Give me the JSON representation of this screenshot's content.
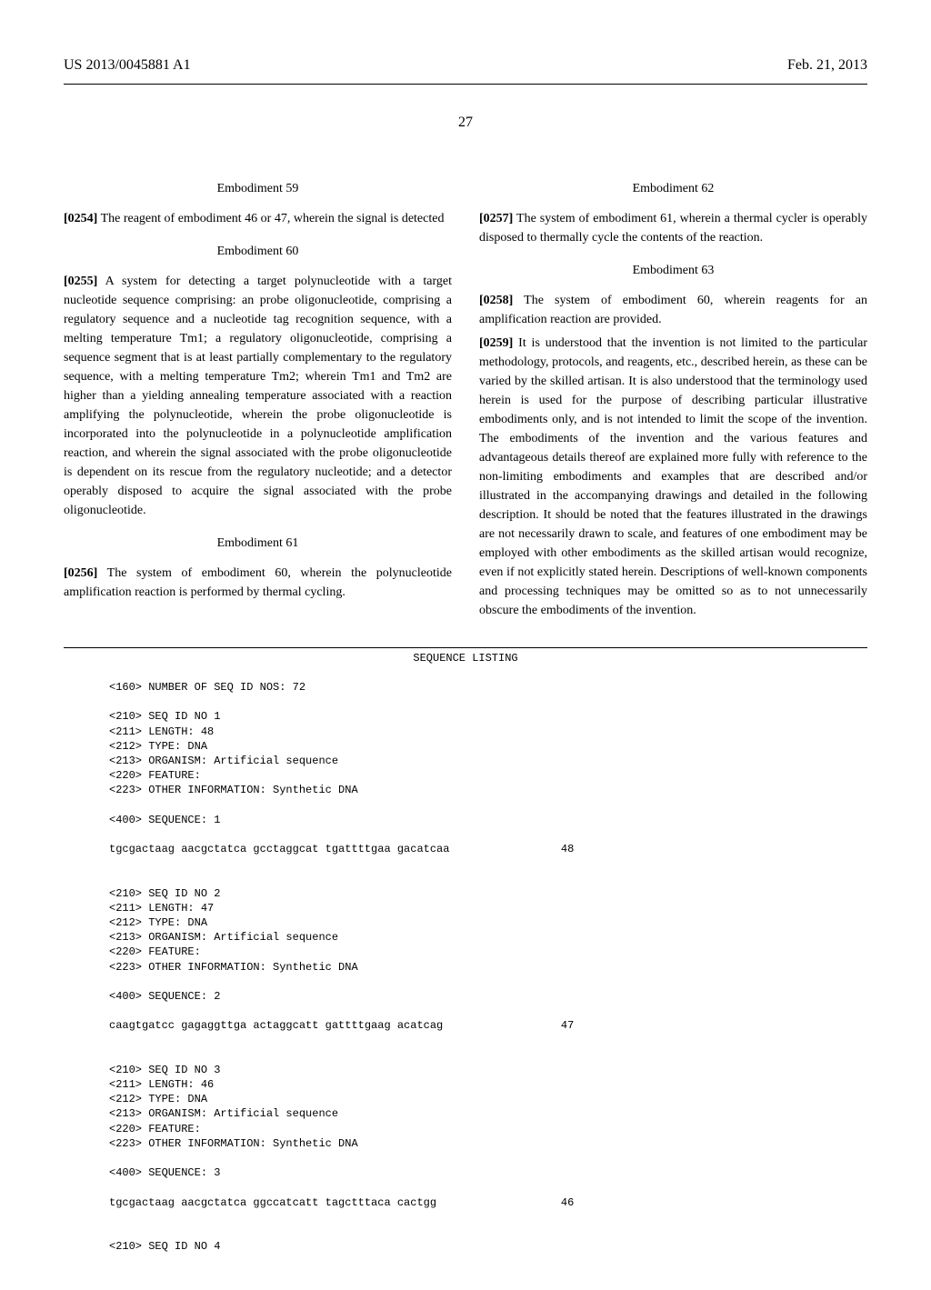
{
  "header": {
    "left": "US 2013/0045881 A1",
    "right": "Feb. 21, 2013"
  },
  "pageNumber": "27",
  "leftColumn": {
    "embodiments": [
      {
        "title": "Embodiment 59",
        "paraNum": "[0254]",
        "text": "  The reagent of embodiment 46 or 47, wherein the signal is detected"
      },
      {
        "title": "Embodiment 60",
        "paraNum": "[0255]",
        "text": "  A system for detecting a target polynucleotide with a target nucleotide sequence comprising: an probe oligonucleotide, comprising a regulatory sequence and a nucleotide tag recognition sequence, with a melting temperature Tm1; a regulatory oligonucleotide, comprising a sequence segment that is at least partially complementary to the regulatory sequence, with a melting temperature Tm2; wherein Tm1 and Tm2 are higher than a yielding annealing temperature associated with a reaction amplifying the polynucleotide, wherein the probe oligonucleotide is incorporated into the polynucleotide in a polynucleotide amplification reaction, and wherein the signal associated with the probe oligonucleotide is dependent on its rescue from the regulatory nucleotide; and a detector operably disposed to acquire the signal associated with the probe oligonucleotide."
      },
      {
        "title": "Embodiment 61",
        "paraNum": "[0256]",
        "text": "  The system of embodiment 60, wherein the polynucleotide amplification reaction is performed by thermal cycling."
      }
    ]
  },
  "rightColumn": {
    "embodiments": [
      {
        "title": "Embodiment 62",
        "paraNum": "[0257]",
        "text": "  The system of embodiment 61, wherein a thermal cycler is operably disposed to thermally cycle the contents of the reaction."
      },
      {
        "title": "Embodiment 63",
        "paraNum": "[0258]",
        "text": "  The system of embodiment 60, wherein reagents for an amplification reaction are provided."
      }
    ],
    "extraParagraph": {
      "paraNum": "[0259]",
      "text": "  It is understood that the invention is not limited to the particular methodology, protocols, and reagents, etc., described herein, as these can be varied by the skilled artisan. It is also understood that the terminology used herein is used for the purpose of describing particular illustrative embodiments only, and is not intended to limit the scope of the invention. The embodiments of the invention and the various features and advantageous details thereof are explained more fully with reference to the non-limiting embodiments and examples that are described and/or illustrated in the accompanying drawings and detailed in the following description. It should be noted that the features illustrated in the drawings are not necessarily drawn to scale, and features of one embodiment may be employed with other embodiments as the skilled artisan would recognize, even if not explicitly stated herein. Descriptions of well-known components and processing techniques may be omitted so as to not unnecessarily obscure the embodiments of the invention."
    }
  },
  "sequenceListing": {
    "title": "SEQUENCE LISTING",
    "content": "<160> NUMBER OF SEQ ID NOS: 72\n\n<210> SEQ ID NO 1\n<211> LENGTH: 48\n<212> TYPE: DNA\n<213> ORGANISM: Artificial sequence\n<220> FEATURE:\n<223> OTHER INFORMATION: Synthetic DNA\n\n<400> SEQUENCE: 1\n\ntgcgactaag aacgctatca gcctaggcat tgattttgaa gacatcaa                 48\n\n\n<210> SEQ ID NO 2\n<211> LENGTH: 47\n<212> TYPE: DNA\n<213> ORGANISM: Artificial sequence\n<220> FEATURE:\n<223> OTHER INFORMATION: Synthetic DNA\n\n<400> SEQUENCE: 2\n\ncaagtgatcc gagaggttga actaggcatt gattttgaag acatcag                  47\n\n\n<210> SEQ ID NO 3\n<211> LENGTH: 46\n<212> TYPE: DNA\n<213> ORGANISM: Artificial sequence\n<220> FEATURE:\n<223> OTHER INFORMATION: Synthetic DNA\n\n<400> SEQUENCE: 3\n\ntgcgactaag aacgctatca ggccatcatt tagctttaca cactgg                   46\n\n\n<210> SEQ ID NO 4"
  }
}
